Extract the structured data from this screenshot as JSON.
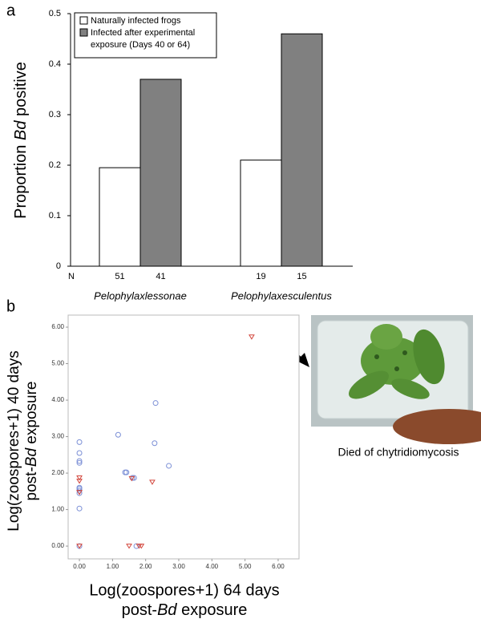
{
  "chart_data": [
    {
      "type": "bar",
      "panel": "a",
      "ylabel": [
        "Proportion ",
        "Bd",
        " positive"
      ],
      "categories": [
        "Pelophylaxlessonae",
        "Pelophylaxesculentus"
      ],
      "n_label": "N",
      "series": [
        {
          "name": [
            "Naturally infected frogs"
          ],
          "color": "#ffffff",
          "values": [
            0.195,
            0.21
          ],
          "n": [
            51,
            19
          ]
        },
        {
          "name": [
            "Infected after experimental",
            "exposure (Days 40 or 64)"
          ],
          "color": "#808080",
          "values": [
            0.37,
            0.46
          ],
          "n": [
            41,
            15
          ]
        }
      ],
      "ylim": [
        0,
        0.5
      ],
      "yticks": [
        0,
        0.1,
        0.2,
        0.3,
        0.4,
        0.5
      ]
    },
    {
      "type": "scatter",
      "panel": "b",
      "xlabel": [
        "Log(zoospores+1) 64 days",
        "post-",
        "Bd",
        " exposure"
      ],
      "ylabel": [
        "Log(zoospores+1) 40 days",
        "post-",
        "Bd",
        " exposure"
      ],
      "series": [
        {
          "marker": "circle",
          "color": "#7b8fd6",
          "x": [
            0,
            0,
            0,
            0,
            0,
            0,
            0,
            0,
            0,
            0,
            1.17,
            1.38,
            1.42,
            1.6,
            1.65,
            2.3,
            2.27,
            2.7,
            1.72
          ],
          "values": [
            2.85,
            2.55,
            2.33,
            2.28,
            1.6,
            1.57,
            1.52,
            1.45,
            1.03,
            0,
            3.05,
            2.02,
            2.02,
            1.87,
            1.87,
            3.92,
            2.82,
            2.2,
            0
          ]
        },
        {
          "marker": "triangle",
          "color": "#d2463c",
          "x": [
            0,
            0,
            0,
            0,
            1.5,
            1.58,
            1.8,
            1.87,
            2.2,
            5.2
          ],
          "values": [
            1.87,
            1.78,
            1.47,
            0,
            0,
            1.85,
            0,
            0,
            1.75,
            5.73
          ]
        }
      ],
      "xlim": [
        -0.34,
        6.63
      ],
      "ylim": [
        -0.35,
        6.33
      ],
      "xticks": [
        {
          "value": 0,
          "label": "0.00"
        },
        {
          "value": 1,
          "label": "1.00"
        },
        {
          "value": 2,
          "label": "2.00"
        },
        {
          "value": 3,
          "label": "3.00"
        },
        {
          "value": 4,
          "label": "4.00"
        },
        {
          "value": 5,
          "label": "5.00"
        },
        {
          "value": 6,
          "label": "6.00"
        }
      ],
      "yticks": [
        {
          "value": 0,
          "label": "0.00"
        },
        {
          "value": 1,
          "label": "1.00"
        },
        {
          "value": 2,
          "label": "2.00"
        },
        {
          "value": 3,
          "label": "3.00"
        },
        {
          "value": 4,
          "label": "4.00"
        },
        {
          "value": 5,
          "label": "5.00"
        },
        {
          "value": 6,
          "label": "6.00"
        }
      ]
    }
  ],
  "annotation": {
    "caption": "Died of chytridiomycosis"
  }
}
